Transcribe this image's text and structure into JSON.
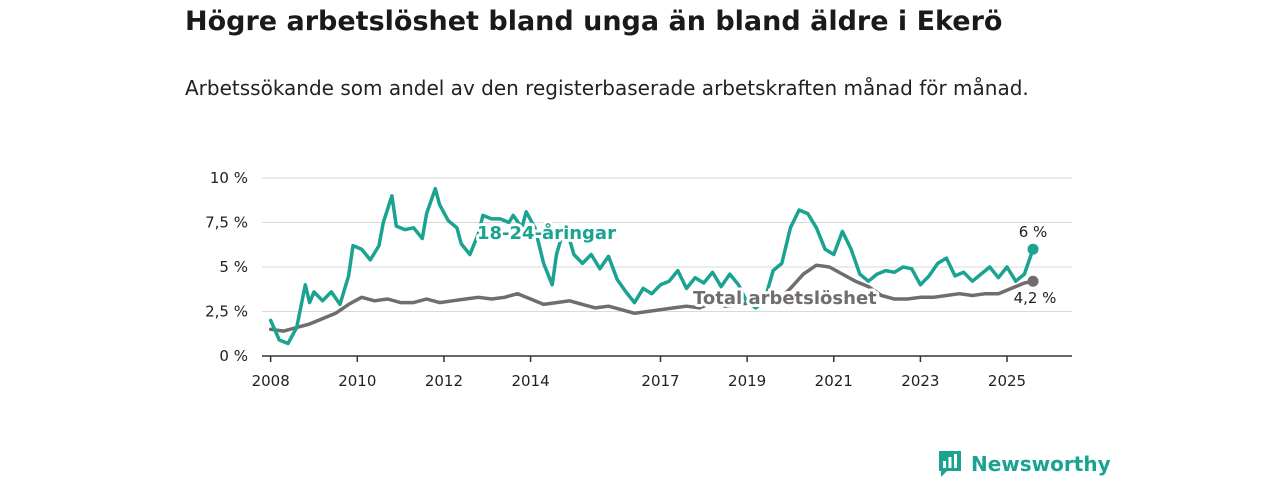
{
  "chart_data": {
    "type": "line",
    "title": "Högre arbetslöshet bland unga än bland äldre i Ekerö",
    "subtitle": "Arbetssökande som andel av den registerbaserade arbetskraften månad för månad.",
    "ylim": [
      0,
      10
    ],
    "xlim": [
      2007.8,
      2026.5
    ],
    "yticks": [
      0,
      2.5,
      5,
      7.5,
      10
    ],
    "ytick_labels": [
      "0 %",
      "2,5 %",
      "5 %",
      "7,5 %",
      "10 %"
    ],
    "xticks": [
      2008,
      2010,
      2012,
      2014,
      2017,
      2019,
      2021,
      2023,
      2025
    ],
    "xtick_labels": [
      "2008",
      "2010",
      "2012",
      "2014",
      "2017",
      "2019",
      "2021",
      "2023",
      "2025"
    ],
    "grid": true,
    "series": [
      {
        "name": "18-24-åringar",
        "color": "#1aa391",
        "end_label": "6 %",
        "x": [
          2008.0,
          2008.2,
          2008.4,
          2008.6,
          2008.8,
          2008.9,
          2009.0,
          2009.2,
          2009.4,
          2009.6,
          2009.8,
          2009.9,
          2010.1,
          2010.3,
          2010.5,
          2010.6,
          2010.8,
          2010.9,
          2011.1,
          2011.3,
          2011.5,
          2011.6,
          2011.8,
          2011.9,
          2012.1,
          2012.3,
          2012.4,
          2012.6,
          2012.8,
          2012.9,
          2013.1,
          2013.3,
          2013.5,
          2013.6,
          2013.8,
          2013.9,
          2014.1,
          2014.3,
          2014.5,
          2014.6,
          2014.8,
          2015.0,
          2015.2,
          2015.4,
          2015.6,
          2015.8,
          2016.0,
          2016.2,
          2016.4,
          2016.6,
          2016.8,
          2017.0,
          2017.2,
          2017.4,
          2017.6,
          2017.8,
          2018.0,
          2018.2,
          2018.4,
          2018.6,
          2018.8,
          2019.0,
          2019.2,
          2019.4,
          2019.6,
          2019.8,
          2020.0,
          2020.2,
          2020.4,
          2020.6,
          2020.8,
          2021.0,
          2021.2,
          2021.4,
          2021.6,
          2021.8,
          2022.0,
          2022.2,
          2022.4,
          2022.6,
          2022.8,
          2023.0,
          2023.2,
          2023.4,
          2023.6,
          2023.8,
          2024.0,
          2024.2,
          2024.4,
          2024.6,
          2024.8,
          2025.0,
          2025.2,
          2025.4,
          2025.6
        ],
        "values": [
          2.0,
          0.9,
          0.7,
          1.6,
          4.0,
          3.0,
          3.6,
          3.1,
          3.6,
          2.9,
          4.5,
          6.2,
          6.0,
          5.4,
          6.2,
          7.5,
          9.0,
          7.3,
          7.1,
          7.2,
          6.6,
          8.0,
          9.4,
          8.5,
          7.6,
          7.2,
          6.3,
          5.7,
          6.9,
          7.9,
          7.7,
          7.7,
          7.5,
          7.9,
          7.2,
          8.1,
          7.2,
          5.2,
          4.0,
          5.7,
          7.4,
          5.7,
          5.2,
          5.7,
          4.9,
          5.6,
          4.3,
          3.6,
          3.0,
          3.8,
          3.5,
          4.0,
          4.2,
          4.8,
          3.8,
          4.4,
          4.1,
          4.7,
          3.9,
          4.6,
          4.0,
          3.0,
          2.7,
          3.1,
          4.8,
          5.2,
          7.2,
          8.2,
          8.0,
          7.2,
          6.0,
          5.7,
          7.0,
          6.0,
          4.6,
          4.2,
          4.6,
          4.8,
          4.7,
          5.0,
          4.9,
          4.0,
          4.5,
          5.2,
          5.5,
          4.5,
          4.7,
          4.2,
          4.6,
          5.0,
          4.4,
          5.0,
          4.2,
          4.6,
          6.0
        ]
      },
      {
        "name": "Total arbetslöshet",
        "color": "#716c6e",
        "end_label": "4,2 %",
        "x": [
          2008.0,
          2008.3,
          2008.6,
          2008.9,
          2009.2,
          2009.5,
          2009.8,
          2010.1,
          2010.4,
          2010.7,
          2011.0,
          2011.3,
          2011.6,
          2011.9,
          2012.2,
          2012.5,
          2012.8,
          2013.1,
          2013.4,
          2013.7,
          2014.0,
          2014.3,
          2014.6,
          2014.9,
          2015.2,
          2015.5,
          2015.8,
          2016.1,
          2016.4,
          2016.7,
          2017.0,
          2017.3,
          2017.6,
          2017.9,
          2018.2,
          2018.5,
          2018.8,
          2019.1,
          2019.4,
          2019.7,
          2020.0,
          2020.3,
          2020.6,
          2020.9,
          2021.2,
          2021.5,
          2021.8,
          2022.1,
          2022.4,
          2022.7,
          2023.0,
          2023.3,
          2023.6,
          2023.9,
          2024.2,
          2024.5,
          2024.8,
          2025.1,
          2025.4,
          2025.6
        ],
        "values": [
          1.5,
          1.4,
          1.6,
          1.8,
          2.1,
          2.4,
          2.9,
          3.3,
          3.1,
          3.2,
          3.0,
          3.0,
          3.2,
          3.0,
          3.1,
          3.2,
          3.3,
          3.2,
          3.3,
          3.5,
          3.2,
          2.9,
          3.0,
          3.1,
          2.9,
          2.7,
          2.8,
          2.6,
          2.4,
          2.5,
          2.6,
          2.7,
          2.8,
          2.7,
          3.0,
          2.8,
          2.9,
          3.0,
          2.9,
          3.1,
          3.8,
          4.6,
          5.1,
          5.0,
          4.6,
          4.2,
          3.9,
          3.4,
          3.2,
          3.2,
          3.3,
          3.3,
          3.4,
          3.5,
          3.4,
          3.5,
          3.5,
          3.8,
          4.1,
          4.2
        ]
      }
    ]
  },
  "brand": {
    "name": "Newsworthy",
    "icon": "bar-chart-logo-icon"
  }
}
